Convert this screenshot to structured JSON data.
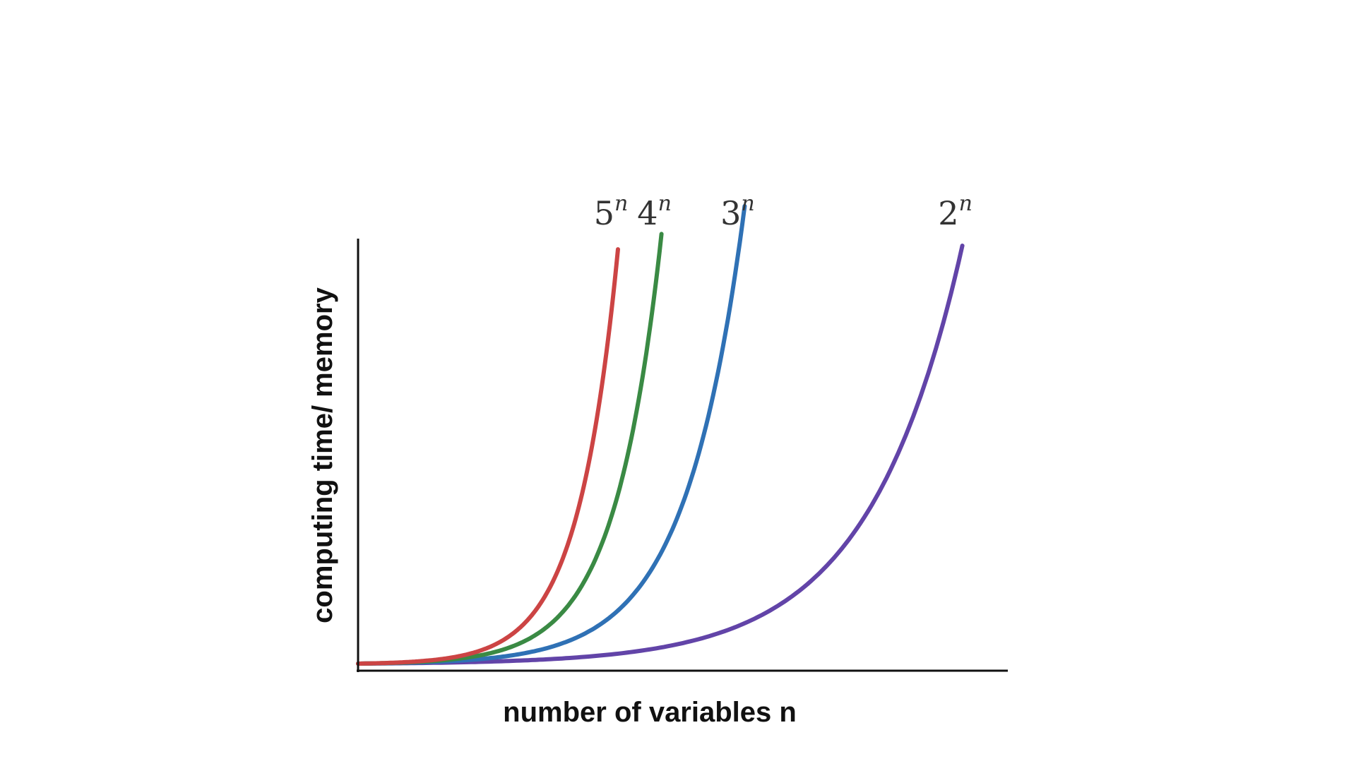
{
  "chart_data": {
    "type": "line",
    "title": "",
    "xlabel": "number of variables n",
    "ylabel": "computing time/ memory",
    "grid": false,
    "legend": "inline labels at curve ends",
    "x_ticks_shown": false,
    "y_ticks_shown": false,
    "series": [
      {
        "label_base": "5",
        "label_exp": "n",
        "base": 5,
        "color": "#cc4444",
        "x_end": 4.0
      },
      {
        "label_base": "4",
        "label_exp": "n",
        "base": 4,
        "color": "#3a8a44",
        "x_end": 4.67
      },
      {
        "label_base": "3",
        "label_exp": "n",
        "base": 3,
        "color": "#2f71b5",
        "x_end": 5.95
      },
      {
        "label_base": "2",
        "label_exp": "n",
        "base": 2,
        "color": "#6244a8",
        "x_end": 9.3
      }
    ],
    "xlim": [
      0,
      10
    ],
    "ylim": [
      0,
      640
    ]
  }
}
